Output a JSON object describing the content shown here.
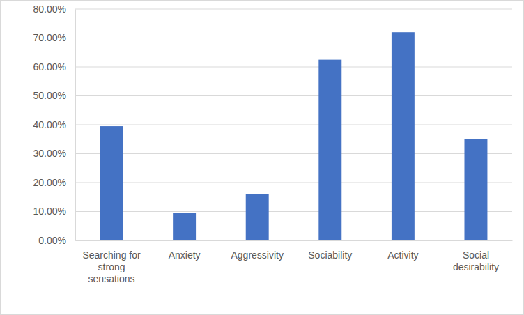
{
  "chart_data": {
    "type": "bar",
    "categories": [
      "Searching for strong sensations",
      "Anxiety",
      "Aggressivity",
      "Sociability",
      "Activity",
      "Social desirability"
    ],
    "values": [
      39.5,
      9.5,
      16,
      62.5,
      72,
      35
    ],
    "color": "#4472c4",
    "ylim": [
      0,
      80
    ],
    "yticks": [
      {
        "value": 0,
        "label": "0.00%"
      },
      {
        "value": 10,
        "label": "10.00%"
      },
      {
        "value": 20,
        "label": "20.00%"
      },
      {
        "value": 30,
        "label": "30.00%"
      },
      {
        "value": 40,
        "label": "40.00%"
      },
      {
        "value": 50,
        "label": "50.00%"
      },
      {
        "value": 60,
        "label": "60.00%"
      },
      {
        "value": 70,
        "label": "70.00%"
      },
      {
        "value": 80,
        "label": "80.00%"
      }
    ],
    "grid": true
  }
}
